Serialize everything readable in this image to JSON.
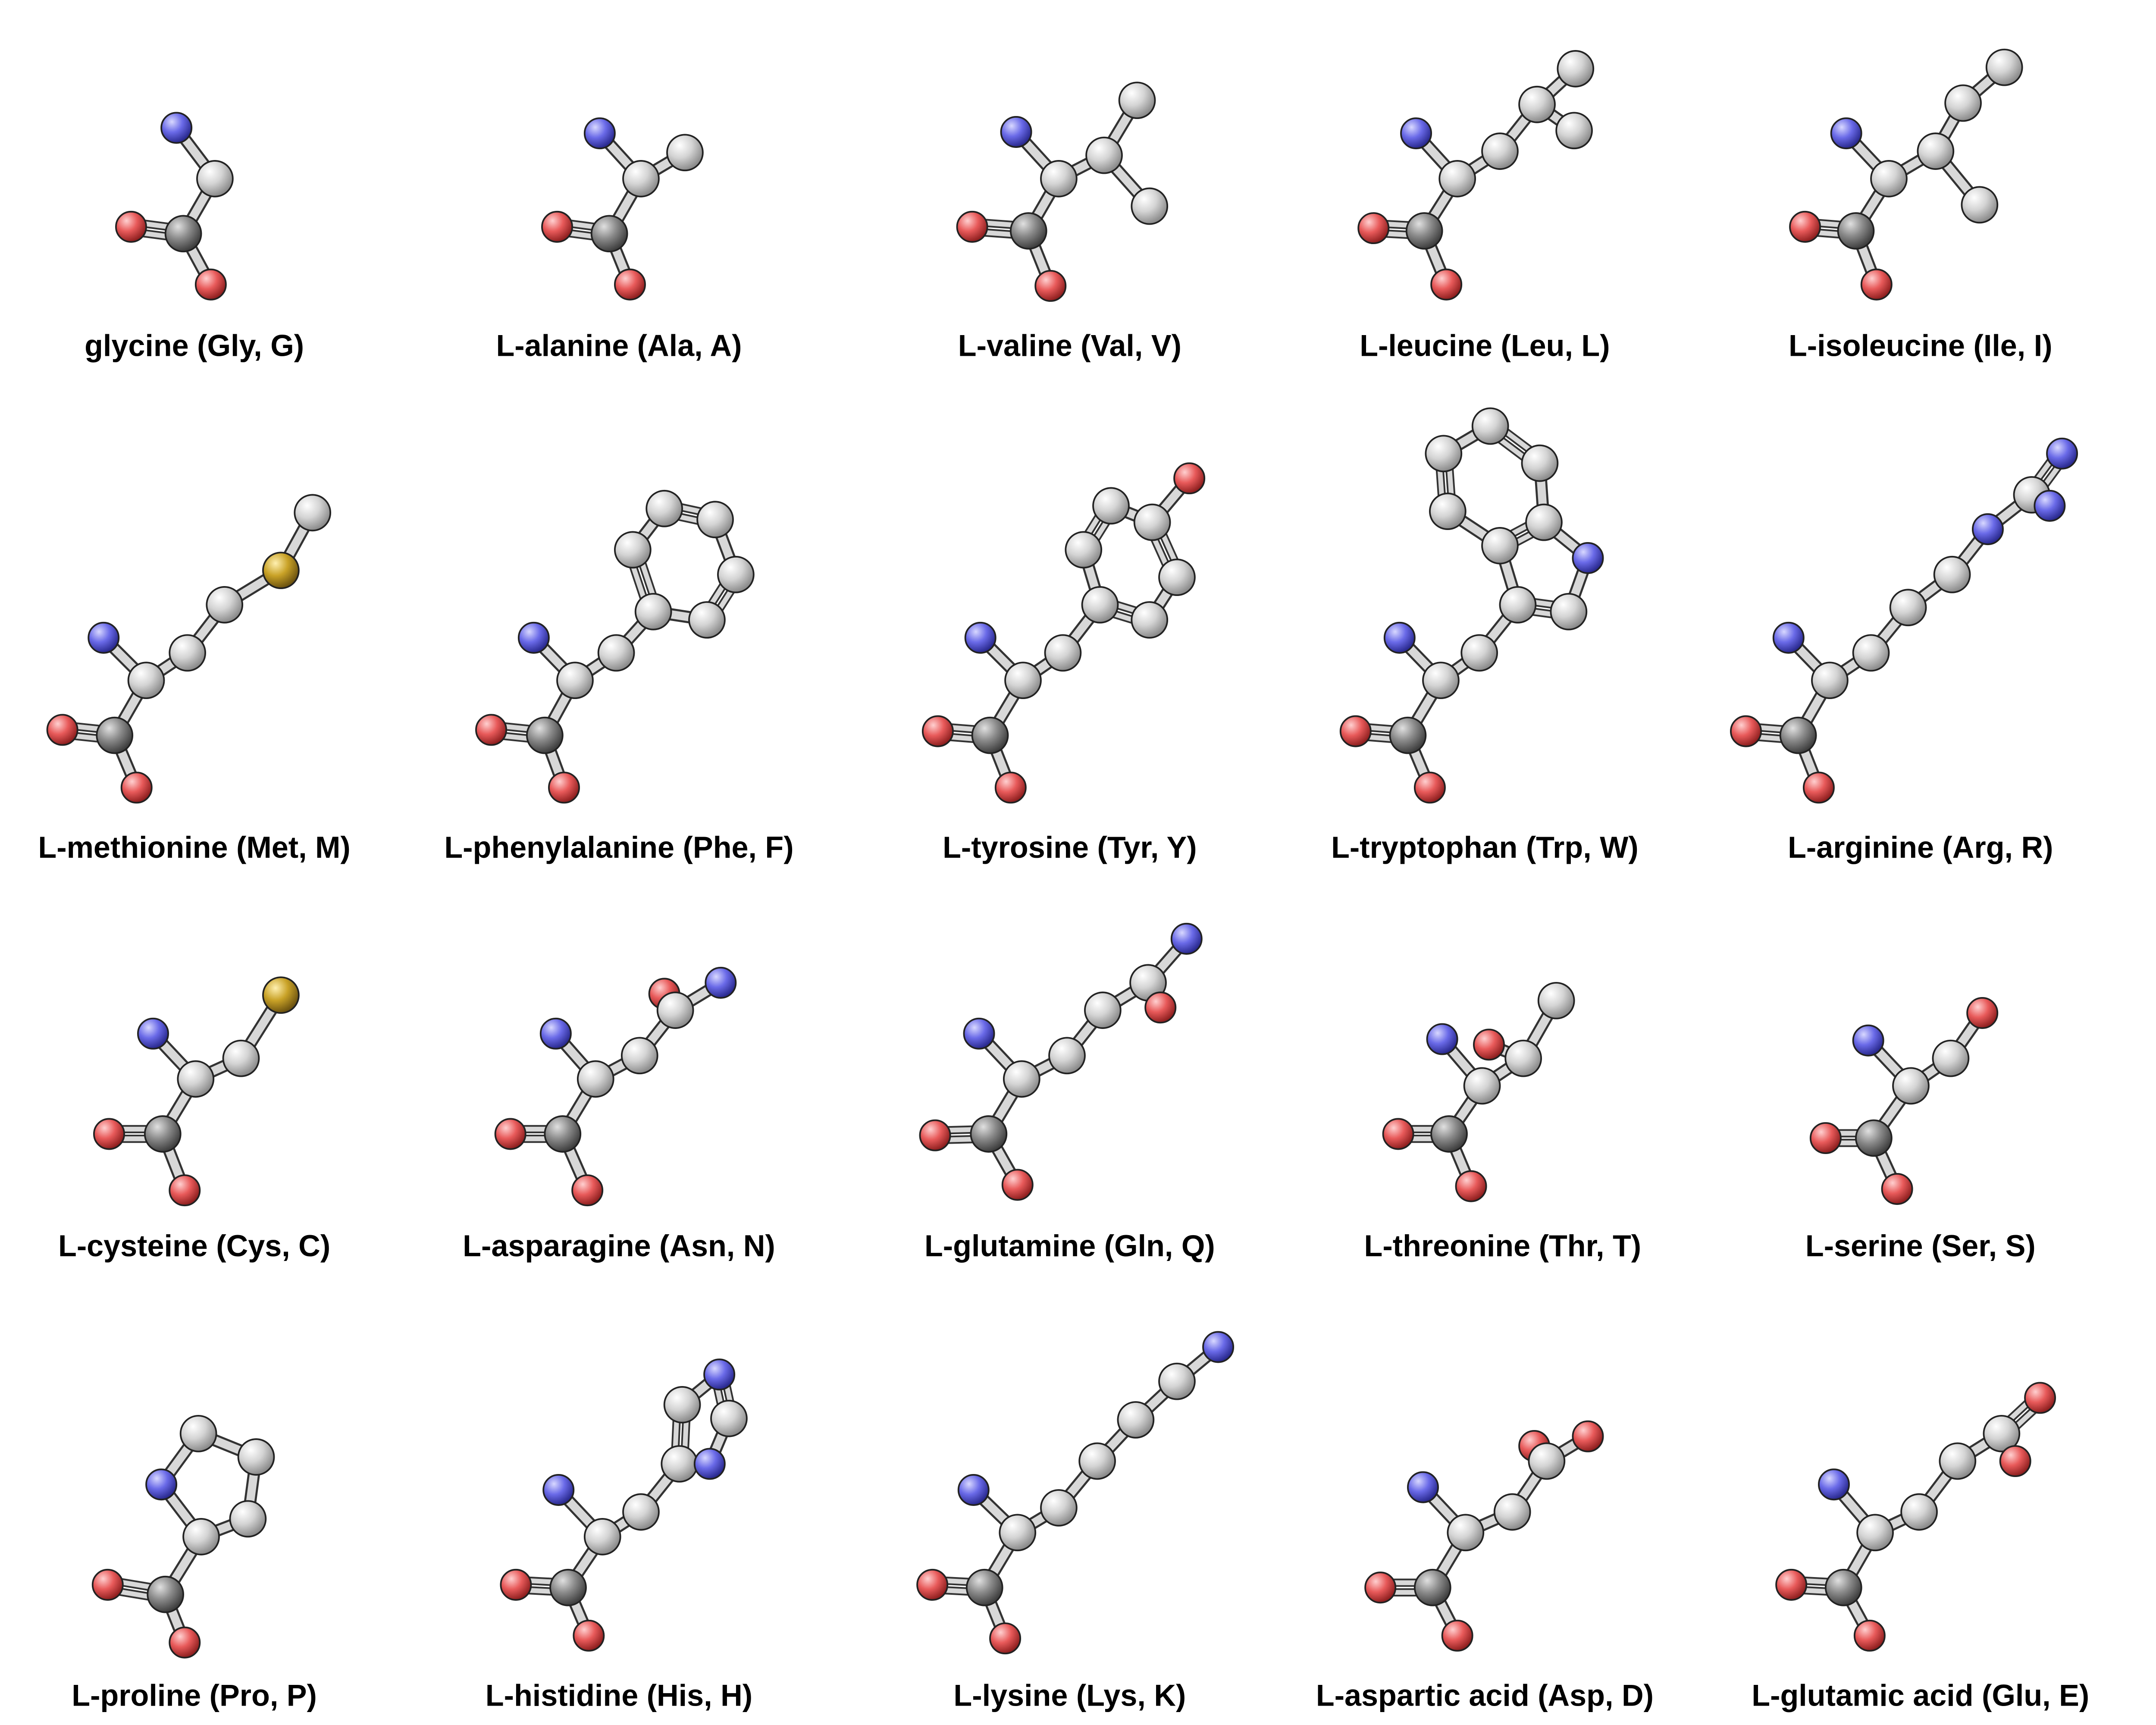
{
  "atom_colors": {
    "C": "#d4d4d4",
    "C_backbone": "#8a8a8a",
    "N": "#6a6ae8",
    "O": "#e85a5a",
    "S": "#c9a227"
  },
  "molecules": [
    {
      "label": "glycine (Gly, G)"
    },
    {
      "label": "L-alanine (Ala, A)"
    },
    {
      "label": "L-valine (Val, V)"
    },
    {
      "label": "L-leucine (Leu, L)"
    },
    {
      "label": "L-isoleucine (Ile, I)"
    },
    {
      "label": "L-methionine (Met, M)"
    },
    {
      "label": "L-phenylalanine (Phe, F)"
    },
    {
      "label": "L-tyrosine (Tyr, Y)"
    },
    {
      "label": "L-tryptophan (Trp, W)"
    },
    {
      "label": "L-arginine (Arg, R)"
    },
    {
      "label": "L-cysteine (Cys, C)"
    },
    {
      "label": "L-asparagine (Asn, N)"
    },
    {
      "label": "L-glutamine (Gln, Q)"
    },
    {
      "label": "L-threonine (Thr, T)"
    },
    {
      "label": "L-serine (Ser, S)"
    },
    {
      "label": "L-proline (Pro, P)"
    },
    {
      "label": "L-histidine (His, H)"
    },
    {
      "label": "L-lysine (Lys, K)"
    },
    {
      "label": "L-aspartic acid (Asp, D)"
    },
    {
      "label": "L-glutamic acid (Glu, E)"
    }
  ]
}
